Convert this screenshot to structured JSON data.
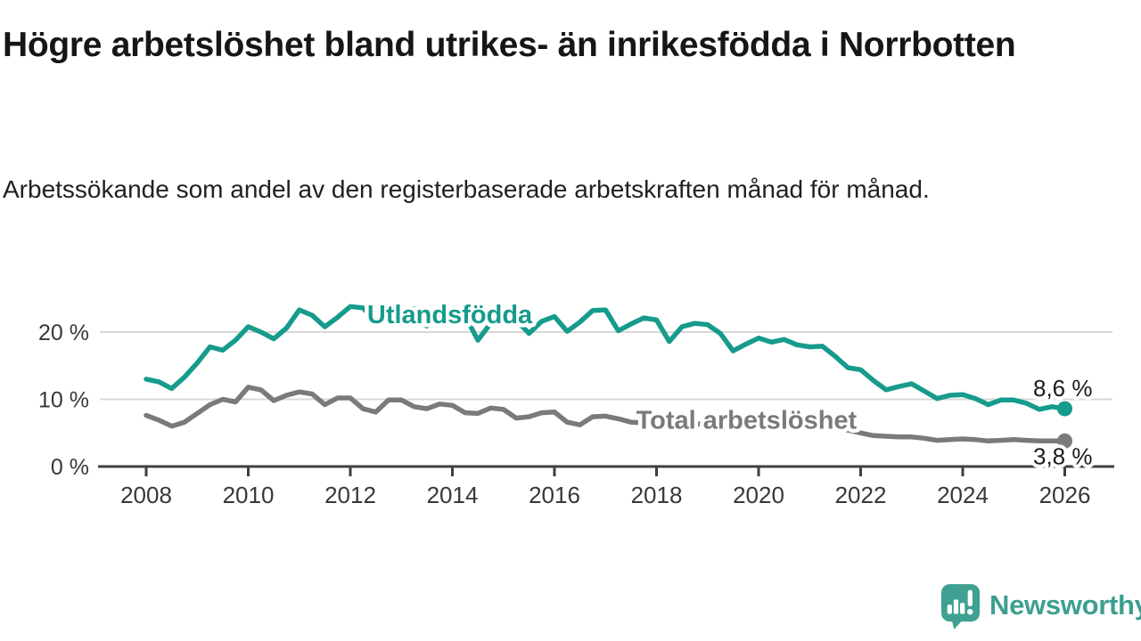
{
  "header": {
    "title": "Högre arbetslöshet bland utrikes- än inrikesfödda i Norrbotten",
    "subtitle": "Arbetssökande som andel av den registerbaserade arbetskraften månad för månad."
  },
  "chart_data": {
    "type": "line",
    "x_start": 2008,
    "x_step": 0.25,
    "xlim": [
      2007.8,
      2027
    ],
    "ylim": [
      0,
      25
    ],
    "grid": "horizontal",
    "x_ticks": [
      2008,
      2010,
      2012,
      2014,
      2016,
      2018,
      2020,
      2022,
      2024,
      2026
    ],
    "y_ticks": [
      {
        "value": 0,
        "label": "0 %"
      },
      {
        "value": 10,
        "label": "10 %"
      },
      {
        "value": 20,
        "label": "20 %"
      }
    ],
    "series": [
      {
        "name": "Utlandsfödda",
        "color": "#169B8C",
        "end_label": "8,6 %",
        "end_value": 8.6,
        "label_pos": {
          "year": 2012.33,
          "pct": 21.3
        },
        "values": [
          13.0,
          12.6,
          11.6,
          13.3,
          15.4,
          17.8,
          17.3,
          18.8,
          20.8,
          20.0,
          19.0,
          20.6,
          23.3,
          22.5,
          20.8,
          22.2,
          23.8,
          23.6,
          21.5,
          22.8,
          23.4,
          23.5,
          20.9,
          22.3,
          23.2,
          22.4,
          18.8,
          21.3,
          22.2,
          21.8,
          19.8,
          21.6,
          22.3,
          20.1,
          21.5,
          23.2,
          23.3,
          20.2,
          21.2,
          22.1,
          21.8,
          18.6,
          20.8,
          21.3,
          21.1,
          19.8,
          17.2,
          18.2,
          19.1,
          18.5,
          18.9,
          18.1,
          17.8,
          17.9,
          16.4,
          14.7,
          14.4,
          12.8,
          11.4,
          11.9,
          12.3,
          11.2,
          10.1,
          10.6,
          10.7,
          10.1,
          9.2,
          9.9,
          9.9,
          9.4,
          8.5,
          8.9,
          8.6
        ]
      },
      {
        "name": "Total arbetslöshet",
        "color": "#7A7A7A",
        "end_label": "3,8 %",
        "end_value": 3.8,
        "label_pos": {
          "year": 2017.6,
          "pct": 5.65
        },
        "values": [
          7.6,
          6.9,
          6.0,
          6.6,
          7.9,
          9.2,
          10.0,
          9.6,
          11.8,
          11.4,
          9.8,
          10.6,
          11.1,
          10.8,
          9.2,
          10.2,
          10.2,
          8.6,
          8.1,
          9.9,
          9.9,
          8.9,
          8.6,
          9.3,
          9.1,
          8.0,
          7.9,
          8.7,
          8.5,
          7.2,
          7.4,
          8.0,
          8.1,
          6.6,
          6.2,
          7.4,
          7.5,
          7.1,
          6.6,
          6.5,
          6.6,
          6.1,
          6.0,
          6.3,
          6.4,
          6.0,
          5.7,
          6.0,
          6.3,
          6.9,
          7.2,
          7.0,
          6.8,
          6.3,
          5.8,
          5.4,
          5.0,
          4.6,
          4.5,
          4.4,
          4.4,
          4.2,
          3.9,
          4.0,
          4.1,
          4.0,
          3.8,
          3.9,
          4.0,
          3.9,
          3.8,
          3.8,
          3.8
        ]
      }
    ],
    "annotation_values": [
      "8,6 %",
      "3,8 %"
    ]
  },
  "branding": {
    "logo_text": "Newsworthy",
    "logo_icon": "newsworthy-speech-bubble-bar-chart-icon",
    "logo_color": "#3C9F90"
  },
  "colors": {
    "series_foreign_born": "#169B8C",
    "series_total": "#7A7A7A",
    "gridline": "#D8D8D8",
    "axis_line": "#3F3F3F",
    "axis_text": "#383838",
    "title_text": "#161616",
    "annotation_text": "#1B1B1B"
  }
}
